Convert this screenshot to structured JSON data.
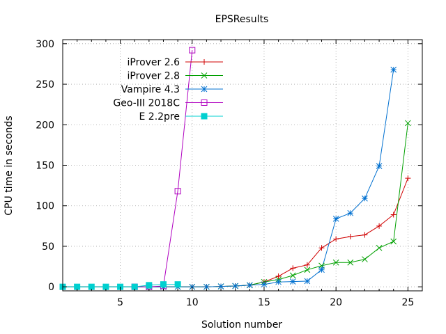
{
  "chart_data": {
    "type": "line",
    "title": "EPSResults",
    "xlabel": "Solution number",
    "ylabel": "CPU time in seconds",
    "xlim": [
      1,
      26
    ],
    "ylim": [
      -5,
      305
    ],
    "xticks": [
      5,
      10,
      15,
      20,
      25
    ],
    "yticks": [
      0,
      50,
      100,
      150,
      200,
      250,
      300
    ],
    "grid": true,
    "legend_position": "top-left",
    "series": [
      {
        "name": "iProver 2.6",
        "color": "#d00000",
        "marker": "plus",
        "points": [
          [
            1,
            0
          ],
          [
            2,
            0
          ],
          [
            3,
            0
          ],
          [
            4,
            0
          ],
          [
            5,
            0
          ],
          [
            6,
            0
          ],
          [
            7,
            0
          ],
          [
            8,
            0
          ],
          [
            9,
            0
          ],
          [
            10,
            0
          ],
          [
            11,
            0
          ],
          [
            12,
            0.5
          ],
          [
            13,
            1
          ],
          [
            14,
            2
          ],
          [
            15,
            6
          ],
          [
            16,
            13
          ],
          [
            17,
            23
          ],
          [
            18,
            27
          ],
          [
            19,
            48
          ],
          [
            20,
            59
          ],
          [
            21,
            62
          ],
          [
            22,
            64
          ],
          [
            23,
            75
          ],
          [
            24,
            89
          ],
          [
            25,
            134
          ]
        ]
      },
      {
        "name": "iProver 2.8",
        "color": "#00a000",
        "marker": "cross",
        "points": [
          [
            1,
            0
          ],
          [
            2,
            0
          ],
          [
            3,
            0
          ],
          [
            4,
            0
          ],
          [
            5,
            0
          ],
          [
            6,
            0
          ],
          [
            7,
            0
          ],
          [
            8,
            0
          ],
          [
            9,
            0
          ],
          [
            10,
            0
          ],
          [
            11,
            0
          ],
          [
            12,
            0.5
          ],
          [
            13,
            1
          ],
          [
            14,
            2
          ],
          [
            15,
            6
          ],
          [
            16,
            9
          ],
          [
            17,
            14
          ],
          [
            18,
            21
          ],
          [
            19,
            26
          ],
          [
            20,
            30
          ],
          [
            21,
            30
          ],
          [
            22,
            34
          ],
          [
            23,
            48
          ],
          [
            24,
            56
          ],
          [
            25,
            202
          ]
        ]
      },
      {
        "name": "Vampire 4.3",
        "color": "#0070d0",
        "marker": "star",
        "points": [
          [
            1,
            0
          ],
          [
            2,
            0
          ],
          [
            3,
            0
          ],
          [
            4,
            0
          ],
          [
            5,
            0
          ],
          [
            6,
            0
          ],
          [
            7,
            0
          ],
          [
            8,
            0
          ],
          [
            9,
            0
          ],
          [
            10,
            0
          ],
          [
            11,
            0
          ],
          [
            12,
            0.5
          ],
          [
            13,
            1
          ],
          [
            14,
            2
          ],
          [
            15,
            3
          ],
          [
            16,
            6
          ],
          [
            17,
            6.5
          ],
          [
            18,
            7
          ],
          [
            19,
            21
          ],
          [
            20,
            84
          ],
          [
            21,
            91
          ],
          [
            22,
            109
          ],
          [
            23,
            149
          ],
          [
            24,
            268
          ]
        ]
      },
      {
        "name": "Geo-III 2018C",
        "color": "#b000c0",
        "marker": "square-open",
        "points": [
          [
            6,
            0
          ],
          [
            7,
            0
          ],
          [
            8,
            1
          ],
          [
            9,
            118
          ],
          [
            10,
            292
          ]
        ]
      },
      {
        "name": "E 2.2pre",
        "color": "#00d0d0",
        "marker": "square-filled",
        "points": [
          [
            1,
            0
          ],
          [
            2,
            0
          ],
          [
            3,
            0
          ],
          [
            4,
            0
          ],
          [
            5,
            0
          ],
          [
            6,
            0
          ],
          [
            7,
            2
          ],
          [
            8,
            3
          ],
          [
            9,
            3
          ]
        ]
      }
    ]
  }
}
